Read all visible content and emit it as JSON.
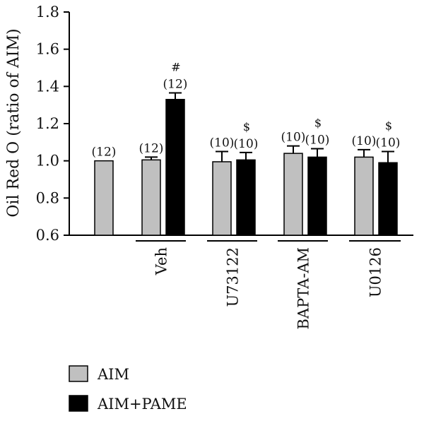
{
  "chart_data": {
    "type": "bar",
    "ylabel": "Oil Red O (ratio of AIM)",
    "ylim": [
      0.6,
      1.8
    ],
    "yticks": [
      "0.6",
      "0.8",
      "1.0",
      "1.2",
      "1.4",
      "1.6",
      "1.8"
    ],
    "groups": [
      {
        "label": ""
      },
      {
        "label": "Veh"
      },
      {
        "label": "U73122"
      },
      {
        "label": "BAPTA-AM"
      },
      {
        "label": "U0126"
      }
    ],
    "series": [
      {
        "name": "AIM",
        "color": "#c0c0c0"
      },
      {
        "name": "AIM+PAME",
        "color": "#000000"
      }
    ],
    "bars": [
      {
        "group": 0,
        "series": 0,
        "value": 1.0,
        "error": 0.0,
        "n_label": "(12)",
        "sig": ""
      },
      {
        "group": 1,
        "series": 0,
        "value": 1.005,
        "error": 0.015,
        "n_label": "(12)",
        "sig": ""
      },
      {
        "group": 1,
        "series": 1,
        "value": 1.33,
        "error": 0.035,
        "n_label": "(12)",
        "sig": "#"
      },
      {
        "group": 2,
        "series": 0,
        "value": 0.995,
        "error": 0.055,
        "n_label": "(10)",
        "sig": ""
      },
      {
        "group": 2,
        "series": 1,
        "value": 1.005,
        "error": 0.04,
        "n_label": "(10)",
        "sig": "$"
      },
      {
        "group": 3,
        "series": 0,
        "value": 1.04,
        "error": 0.04,
        "n_label": "(10)",
        "sig": ""
      },
      {
        "group": 3,
        "series": 1,
        "value": 1.02,
        "error": 0.045,
        "n_label": "(10)",
        "sig": "$"
      },
      {
        "group": 4,
        "series": 0,
        "value": 1.02,
        "error": 0.04,
        "n_label": "(10)",
        "sig": ""
      },
      {
        "group": 4,
        "series": 1,
        "value": 0.99,
        "error": 0.06,
        "n_label": "(10)",
        "sig": "$"
      }
    ],
    "legend_position": "bottom-left"
  }
}
